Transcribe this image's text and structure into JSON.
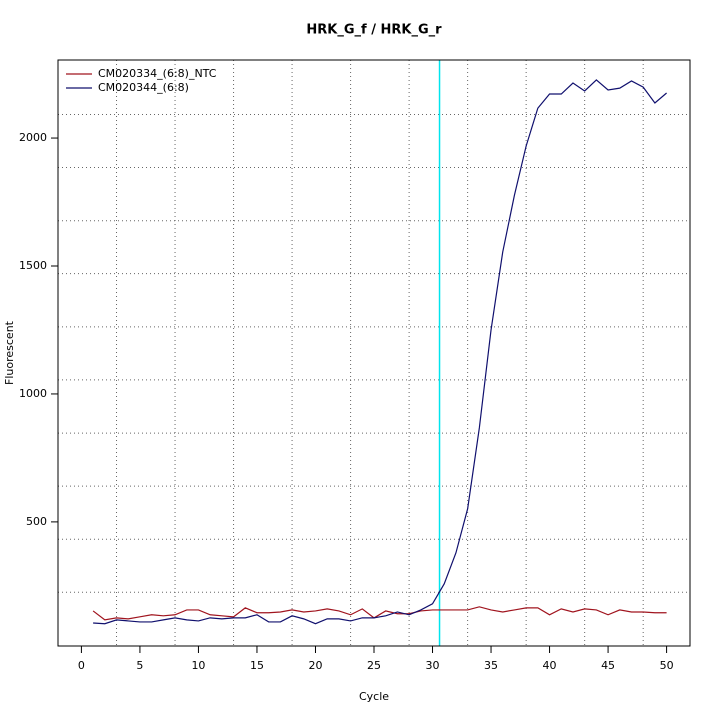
{
  "chart_data": {
    "type": "line",
    "title": "HRK_G_f / HRK_G_r",
    "x_label": "Cycle",
    "y_label": "Fluorescent",
    "x": [
      1,
      2,
      3,
      4,
      5,
      6,
      7,
      8,
      9,
      10,
      11,
      12,
      13,
      14,
      15,
      16,
      17,
      18,
      19,
      20,
      21,
      22,
      23,
      24,
      25,
      26,
      27,
      28,
      29,
      30,
      31,
      32,
      33,
      34,
      35,
      36,
      37,
      38,
      39,
      40,
      41,
      42,
      43,
      44,
      45,
      46,
      47,
      48,
      49,
      50
    ],
    "series": [
      {
        "name": "CM020334_(6:8)_NTC",
        "color": "#a0141e",
        "values": [
          152,
          117,
          125,
          121,
          129,
          137,
          133,
          137,
          156,
          156,
          137,
          133,
          129,
          164,
          145,
          145,
          148,
          156,
          148,
          152,
          160,
          152,
          137,
          160,
          125,
          152,
          141,
          141,
          152,
          156,
          156,
          156,
          156,
          168,
          156,
          148,
          156,
          164,
          164,
          137,
          160,
          148,
          160,
          156,
          137,
          156,
          148,
          148,
          145,
          145
        ]
      },
      {
        "name": "CM020344_(6:8)",
        "color": "#10106e",
        "values": [
          105,
          102,
          117,
          113,
          109,
          109,
          117,
          125,
          117,
          113,
          125,
          121,
          125,
          125,
          137,
          109,
          109,
          133,
          121,
          102,
          121,
          121,
          113,
          125,
          125,
          133,
          148,
          137,
          156,
          180,
          258,
          379,
          551,
          867,
          1250,
          1555,
          1777,
          1969,
          2117,
          2172,
          2172,
          2215,
          2184,
          2227,
          2188,
          2195,
          2223,
          2199,
          2137,
          2176
        ]
      }
    ],
    "xlim": [
      -2,
      52
    ],
    "ylim": [
      15,
      2305
    ],
    "xticks": [
      0,
      5,
      10,
      15,
      20,
      25,
      30,
      35,
      40,
      45,
      50
    ],
    "yticks": [
      500,
      1000,
      1500,
      2000
    ],
    "xgrid": [
      3,
      8,
      13,
      18,
      23,
      28,
      33,
      38,
      43,
      48
    ],
    "ygrid": [
      225,
      432,
      640,
      847,
      1055,
      1262,
      1470,
      1677,
      1885,
      2092
    ],
    "vline": {
      "value": 30.6,
      "color": "#00e5ee"
    },
    "legend": "top-left"
  }
}
